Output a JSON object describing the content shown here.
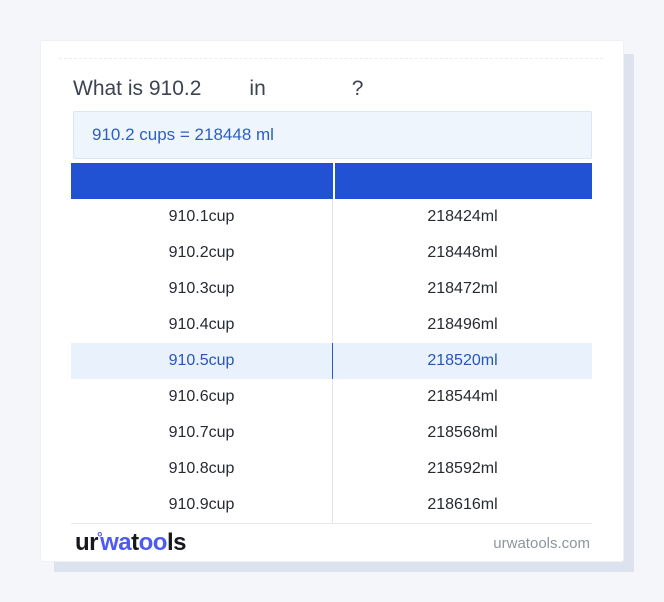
{
  "title": {
    "part1": "What is 910.2",
    "part2": "in",
    "part3": "?"
  },
  "result": {
    "text": "910.2 cups = 218448 ml"
  },
  "table": {
    "header_left": "",
    "header_right": "",
    "rows": [
      {
        "cup": "910.1cup",
        "ml": "218424ml",
        "highlighted": false
      },
      {
        "cup": "910.2cup",
        "ml": "218448ml",
        "highlighted": false
      },
      {
        "cup": "910.3cup",
        "ml": "218472ml",
        "highlighted": false
      },
      {
        "cup": "910.4cup",
        "ml": "218496ml",
        "highlighted": false
      },
      {
        "cup": "910.5cup",
        "ml": "218520ml",
        "highlighted": true
      },
      {
        "cup": "910.6cup",
        "ml": "218544ml",
        "highlighted": false
      },
      {
        "cup": "910.7cup",
        "ml": "218568ml",
        "highlighted": false
      },
      {
        "cup": "910.8cup",
        "ml": "218592ml",
        "highlighted": false
      },
      {
        "cup": "910.9cup",
        "ml": "218616ml",
        "highlighted": false
      }
    ]
  },
  "footer": {
    "logo": {
      "seg1": "ur",
      "degree": "°",
      "seg2": "wa",
      "seg3": "t",
      "seg4": "oo",
      "seg5": "ls"
    },
    "site": "urwatools.com"
  },
  "colors": {
    "header_blue": "#2152d3",
    "result_bg": "#eef5fd",
    "result_text": "#2e60bf",
    "highlight_bg": "#e8f1fc",
    "highlight_text": "#2757b3",
    "logo_blue": "#4d5cec",
    "footer_text": "#8f949e",
    "card_shadow": "#dde3ee"
  }
}
